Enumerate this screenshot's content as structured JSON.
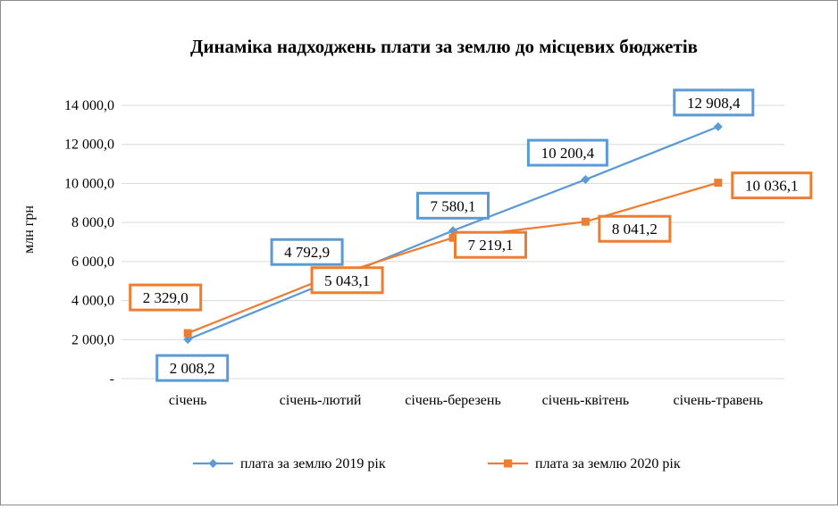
{
  "chart_data": {
    "type": "line",
    "title": "Динаміка надходжень плати за землю до місцевих бюджетів",
    "ylabel": "млн грн",
    "xlabel": "",
    "categories": [
      "січень",
      "січень-лютий",
      "січень-березень",
      "січень-квітень",
      "січень-травень"
    ],
    "ylim": [
      0,
      14000
    ],
    "y_ticks": [
      {
        "value": 0,
        "label": "-"
      },
      {
        "value": 2000,
        "label": "2 000,0"
      },
      {
        "value": 4000,
        "label": "4 000,0"
      },
      {
        "value": 6000,
        "label": "6 000,0"
      },
      {
        "value": 8000,
        "label": "8 000,0"
      },
      {
        "value": 10000,
        "label": "10 000,0"
      },
      {
        "value": 12000,
        "label": "12 000,0"
      },
      {
        "value": 14000,
        "label": "14 000,0"
      }
    ],
    "grid": true,
    "legend_position": "bottom",
    "series": [
      {
        "name": "плата за землю 2019 рік",
        "color": "#5b9bd5",
        "marker": "diamond",
        "values": [
          2008.2,
          4792.9,
          7580.1,
          10200.4,
          12908.4
        ],
        "labels": [
          "2 008,2",
          "4 792,9",
          "7 580,1",
          "10 200,4",
          "12 908,4"
        ]
      },
      {
        "name": "плата за землю 2020 рік",
        "color": "#ed7d31",
        "marker": "square",
        "values": [
          2329.0,
          5043.1,
          7219.1,
          8041.2,
          10036.1
        ],
        "labels": [
          "2 329,0",
          "5 043,1",
          "7 219,1",
          "8 041,2",
          "10 036,1"
        ]
      }
    ]
  }
}
